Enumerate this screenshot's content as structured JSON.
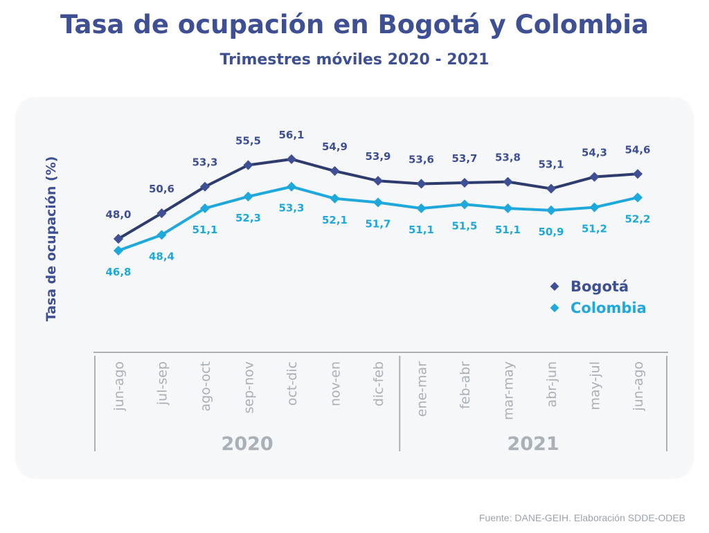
{
  "chart_data": {
    "type": "line",
    "title": "Tasa de ocupación en Bogotá y Colombia",
    "subtitle": "Trimestres móviles 2020 - 2021",
    "ylabel": "Tasa de ocupación (%)",
    "xlabel": "",
    "categories": [
      "jun-ago",
      "jul-sep",
      "ago-oct",
      "sep-nov",
      "oct-dic",
      "nov-en",
      "dic-feb",
      "ene-mar",
      "feb-abr",
      "mar-may",
      "abr-jun",
      "may-jul",
      "jun-ago"
    ],
    "year_groups": [
      {
        "label": "2020",
        "count": 7
      },
      {
        "label": "2021",
        "count": 6
      }
    ],
    "series": [
      {
        "name": "Bogotá",
        "color": "#3e4f94",
        "line_color": "#2d3c6c",
        "values": [
          48.0,
          50.6,
          53.3,
          55.5,
          56.1,
          54.9,
          53.9,
          53.6,
          53.7,
          53.8,
          53.1,
          54.3,
          54.6
        ]
      },
      {
        "name": "Colombia",
        "color": "#1fa8db",
        "line_color": "#1fa8db",
        "values": [
          46.8,
          48.4,
          51.1,
          52.3,
          53.3,
          52.1,
          51.7,
          51.1,
          51.5,
          51.1,
          50.9,
          51.2,
          52.2
        ]
      }
    ],
    "value_labels": {
      "Bogotá": [
        "48,0",
        "50,6",
        "53,3",
        "55,5",
        "56,1",
        "54,9",
        "53,9",
        "53,6",
        "53,7",
        "53,8",
        "53,1",
        "54,3",
        "54,6"
      ],
      "Colombia": [
        "46,8",
        "48,4",
        "51,1",
        "52,3",
        "53,3",
        "52,1",
        "51,7",
        "51,1",
        "51,5",
        "51,1",
        "50,9",
        "51,2",
        "52,2"
      ]
    },
    "legend_position": "right",
    "grid": false
  },
  "source": "Fuente: DANE-GEIH. Elaboración SDDE-ODEB"
}
